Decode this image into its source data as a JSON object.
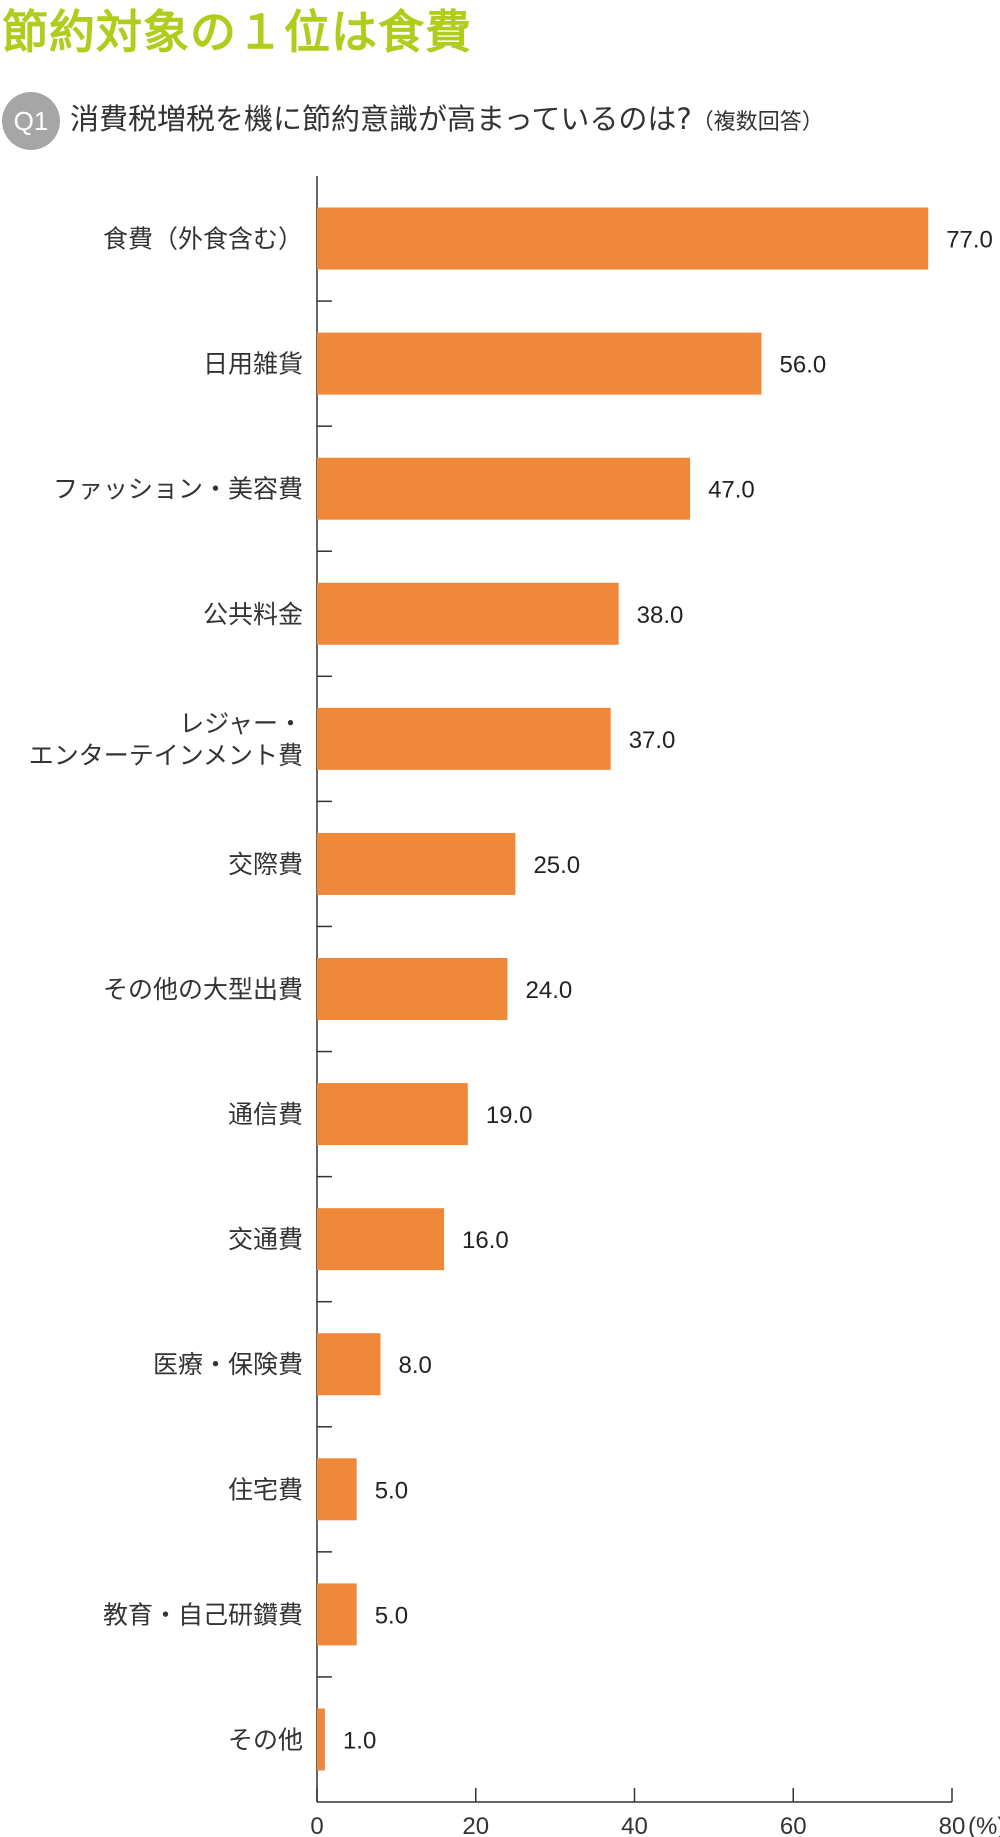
{
  "title": "節約対象の１位は食費",
  "question": {
    "badge": "Q1",
    "text": "消費税増税を機に節約意識が高まっているのは?",
    "note": "（複数回答）"
  },
  "colors": {
    "title": "#b2cc1e",
    "bar": "#f0883a",
    "badge": "#a6a6a6",
    "axis": "#333333"
  },
  "chart_data": {
    "type": "bar",
    "orientation": "horizontal",
    "categories": [
      [
        "食費（外食含む）"
      ],
      [
        "日用雑貨"
      ],
      [
        "ファッション・美容費"
      ],
      [
        "公共料金"
      ],
      [
        "レジャー・",
        "エンターテインメント費"
      ],
      [
        "交際費"
      ],
      [
        "その他の大型出費"
      ],
      [
        "通信費"
      ],
      [
        "交通費"
      ],
      [
        "医療・保険費"
      ],
      [
        "住宅費"
      ],
      [
        "教育・自己研鑽費"
      ],
      [
        "その他"
      ]
    ],
    "values": [
      77.0,
      56.0,
      47.0,
      38.0,
      37.0,
      25.0,
      24.0,
      19.0,
      16.0,
      8.0,
      5.0,
      5.0,
      1.0
    ],
    "value_labels": [
      "77.0",
      "56.0",
      "47.0",
      "38.0",
      "37.0",
      "25.0",
      "24.0",
      "19.0",
      "16.0",
      "8.0",
      "5.0",
      "5.0",
      "1.0"
    ],
    "xlim": [
      0,
      80
    ],
    "xticks": [
      0,
      20,
      40,
      60,
      80
    ],
    "xtick_labels": [
      "0",
      "20",
      "40",
      "60",
      "80"
    ],
    "unit": "(%)",
    "grid": false,
    "legend": "none"
  }
}
